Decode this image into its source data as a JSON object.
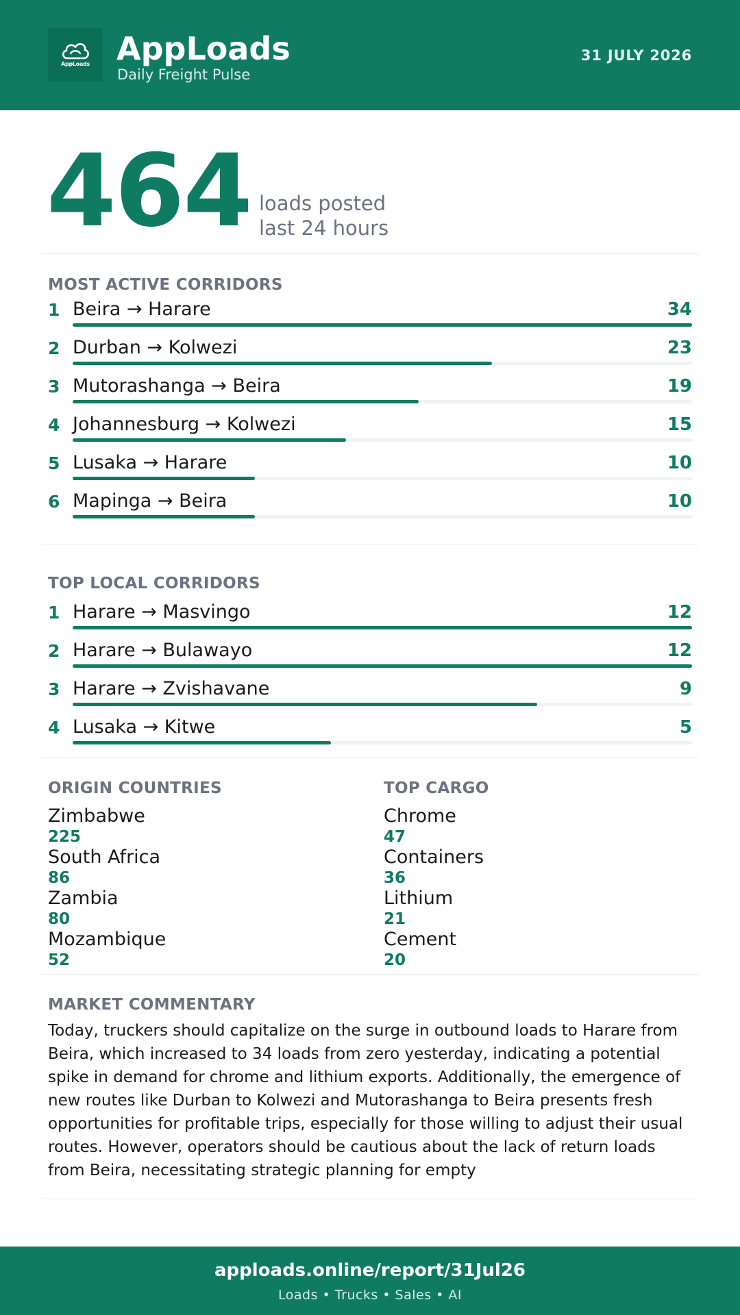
{
  "header": {
    "logo_text_a": "App",
    "logo_text_b": "Loads",
    "brand": "AppLoads",
    "tagline": "Daily Freight Pulse",
    "date": "31 JULY 2026"
  },
  "hero": {
    "value": "464",
    "label_line1": "loads posted",
    "label_line2": "last 24 hours"
  },
  "most_active": {
    "title": "MOST ACTIVE CORRIDORS",
    "max": 34,
    "items": [
      {
        "rank": "1",
        "route": "Beira → Harare",
        "count": 34
      },
      {
        "rank": "2",
        "route": "Durban → Kolwezi",
        "count": 23
      },
      {
        "rank": "3",
        "route": "Mutorashanga → Beira",
        "count": 19
      },
      {
        "rank": "4",
        "route": "Johannesburg → Kolwezi",
        "count": 15
      },
      {
        "rank": "5",
        "route": "Lusaka → Harare",
        "count": 10
      },
      {
        "rank": "6",
        "route": "Mapinga → Beira",
        "count": 10
      }
    ]
  },
  "top_local": {
    "title": "TOP LOCAL CORRIDORS",
    "max": 12,
    "items": [
      {
        "rank": "1",
        "route": "Harare → Masvingo",
        "count": 12
      },
      {
        "rank": "2",
        "route": "Harare → Bulawayo",
        "count": 12
      },
      {
        "rank": "3",
        "route": "Harare → Zvishavane",
        "count": 9
      },
      {
        "rank": "4",
        "route": "Lusaka → Kitwe",
        "count": 5
      }
    ]
  },
  "origin_countries": {
    "title": "ORIGIN COUNTRIES",
    "items": [
      {
        "name": "Zimbabwe",
        "value": "225"
      },
      {
        "name": "South Africa",
        "value": "86"
      },
      {
        "name": "Zambia",
        "value": "80"
      },
      {
        "name": "Mozambique",
        "value": "52"
      }
    ]
  },
  "top_cargo": {
    "title": "TOP CARGO",
    "items": [
      {
        "name": "Chrome",
        "value": "47"
      },
      {
        "name": "Containers",
        "value": "36"
      },
      {
        "name": "Lithium",
        "value": "21"
      },
      {
        "name": "Cement",
        "value": "20"
      }
    ]
  },
  "commentary": {
    "title": "MARKET COMMENTARY",
    "text": "Today, truckers should capitalize on the surge in outbound loads to Harare from Beira, which increased to 34 loads from zero yesterday, indicating a potential spike in demand for chrome and lithium exports. Additionally, the emergence of new routes like Durban to Kolwezi and Mutorashanga to Beira presents fresh opportunities for profitable trips, especially for those willing to adjust their usual routes. However, operators should be cautious about the lack of return loads from Beira, necessitating strategic planning for empty"
  },
  "footer": {
    "url": "apploads.online/report/31Jul26",
    "links": "Loads • Trucks • Sales • AI"
  },
  "colors": {
    "brand": "#0f7b62",
    "muted": "#6b7280",
    "track": "#f1f2f2"
  }
}
